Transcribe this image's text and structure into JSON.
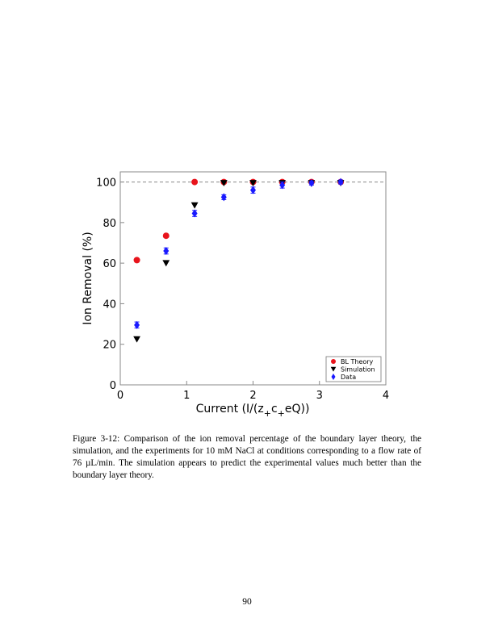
{
  "figure": {
    "chart_data": {
      "type": "scatter",
      "xlabel": {
        "main": "Current (I/(z",
        "sub1": "+",
        "mid": "c",
        "sub2": "+",
        "tail": "eQ))"
      },
      "ylabel": "Ion Removal (%)",
      "xlim": [
        0,
        4
      ],
      "ylim": [
        0,
        105
      ],
      "xticks": [
        "0",
        "1",
        "2",
        "3",
        "4"
      ],
      "yticks": [
        "0",
        "20",
        "40",
        "60",
        "80",
        "100"
      ],
      "reference_line": {
        "y": 100,
        "style": "dashed"
      },
      "grid": false,
      "legend_position": "bottom-right",
      "series": [
        {
          "name": "BL Theory",
          "marker": "circle",
          "color": "#e8141c",
          "points": [
            [
              0.25,
              61.5
            ],
            [
              0.69,
              73.5
            ],
            [
              1.12,
              100
            ],
            [
              1.56,
              100
            ],
            [
              2.0,
              100
            ],
            [
              2.44,
              100
            ],
            [
              2.88,
              100
            ],
            [
              3.32,
              100
            ]
          ]
        },
        {
          "name": "Simulation",
          "marker": "triangle-down",
          "color": "#000000",
          "points": [
            [
              0.25,
              22.5
            ],
            [
              0.69,
              60
            ],
            [
              1.12,
              88.5
            ],
            [
              1.56,
              99.5
            ],
            [
              2.0,
              99.5
            ],
            [
              2.44,
              99.5
            ],
            [
              2.88,
              99.5
            ],
            [
              3.32,
              99.5
            ]
          ]
        },
        {
          "name": "Data",
          "marker": "diamond",
          "color": "#1a1aff",
          "points": [
            [
              0.25,
              29.5
            ],
            [
              0.69,
              66
            ],
            [
              1.12,
              84.5
            ],
            [
              1.56,
              92.5
            ],
            [
              2.0,
              96
            ],
            [
              2.44,
              98.5
            ],
            [
              2.88,
              99.5
            ],
            [
              3.32,
              100
            ]
          ],
          "errors": [
            1.5,
            1.5,
            1.5,
            1.2,
            1.5,
            1.5,
            1.0,
            1.0
          ]
        }
      ]
    }
  },
  "caption": {
    "label": "Figure 3-12:",
    "text": "Comparison of the ion removal percentage of the boundary layer theory, the simulation, and the experiments for 10 mM NaCl at conditions corresponding to a flow rate of 76 µL/min. The simulation appears to predict the experimental values much better than the boundary layer theory."
  },
  "page_number": "90"
}
